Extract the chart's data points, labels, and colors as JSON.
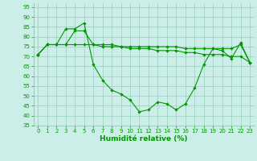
{
  "x": [
    0,
    1,
    2,
    3,
    4,
    5,
    6,
    7,
    8,
    9,
    10,
    11,
    12,
    13,
    14,
    15,
    16,
    17,
    18,
    19,
    20,
    21,
    22,
    23
  ],
  "line1": [
    71,
    76,
    76,
    84,
    84,
    87,
    66,
    58,
    53,
    51,
    48,
    42,
    43,
    47,
    46,
    43,
    46,
    54,
    66,
    74,
    73,
    69,
    77,
    67
  ],
  "line2": [
    71,
    76,
    76,
    76,
    83,
    83,
    76,
    76,
    76,
    75,
    75,
    75,
    75,
    75,
    75,
    75,
    74,
    74,
    74,
    74,
    74,
    74,
    76,
    67
  ],
  "line3": [
    71,
    76,
    76,
    76,
    76,
    76,
    76,
    75,
    75,
    75,
    74,
    74,
    74,
    73,
    73,
    73,
    72,
    72,
    71,
    71,
    71,
    70,
    70,
    67
  ],
  "bg_color": "#cceee8",
  "grid_color": "#99ccbb",
  "line_color": "#009900",
  "xlabel": "Humidité relative (%)",
  "ylim": [
    35,
    97
  ],
  "xlim": [
    -0.5,
    23.5
  ],
  "yticks": [
    35,
    40,
    45,
    50,
    55,
    60,
    65,
    70,
    75,
    80,
    85,
    90,
    95
  ],
  "xticks": [
    0,
    1,
    2,
    3,
    4,
    5,
    6,
    7,
    8,
    9,
    10,
    11,
    12,
    13,
    14,
    15,
    16,
    17,
    18,
    19,
    20,
    21,
    22,
    23
  ],
  "tick_fontsize": 5.0,
  "xlabel_fontsize": 6.5
}
